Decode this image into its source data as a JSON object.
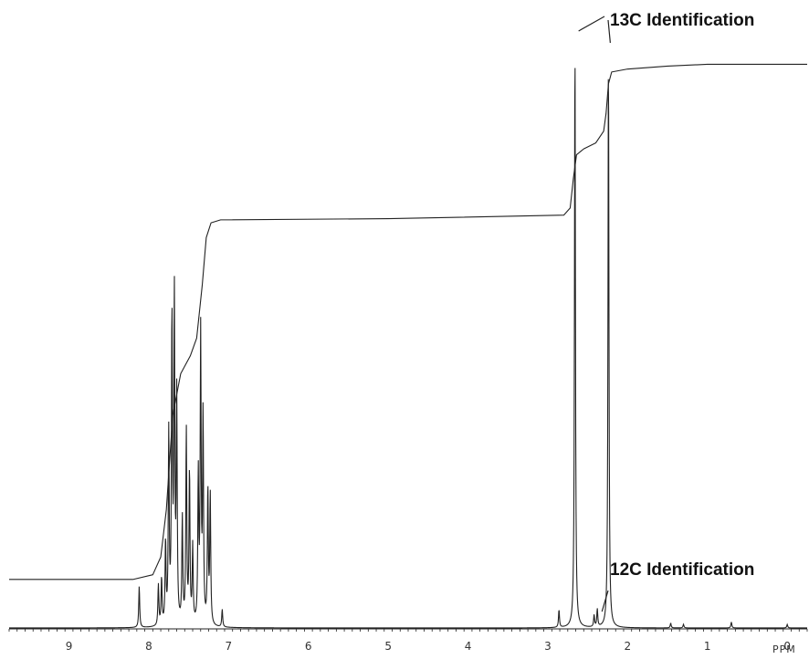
{
  "chart_data": {
    "type": "line",
    "title": "",
    "xlabel": "PPM",
    "ylabel": "",
    "xlim": [
      9.75,
      -0.25
    ],
    "x_reversed": true,
    "major_ticks": [
      9,
      8,
      7,
      6,
      5,
      4,
      3,
      2,
      1,
      0
    ],
    "tick_labels": [
      "9",
      "8",
      "7",
      "6",
      "5",
      "4",
      "3",
      "2",
      "1",
      "0"
    ],
    "minor_tick_step": 0.1,
    "grid": false,
    "legend": "none",
    "color": "#222222",
    "series": [
      {
        "role": "spectrum",
        "baseline": 0,
        "peaks": [
          {
            "ppm": 8.12,
            "height": 0.07
          },
          {
            "ppm": 7.88,
            "height": 0.07
          },
          {
            "ppm": 7.84,
            "height": 0.08
          },
          {
            "ppm": 7.79,
            "height": 0.14
          },
          {
            "ppm": 7.75,
            "height": 0.32
          },
          {
            "ppm": 7.71,
            "height": 0.52
          },
          {
            "ppm": 7.68,
            "height": 0.55
          },
          {
            "ppm": 7.65,
            "height": 0.38
          },
          {
            "ppm": 7.58,
            "height": 0.18
          },
          {
            "ppm": 7.53,
            "height": 0.33
          },
          {
            "ppm": 7.49,
            "height": 0.26
          },
          {
            "ppm": 7.45,
            "height": 0.13
          },
          {
            "ppm": 7.38,
            "height": 0.25
          },
          {
            "ppm": 7.35,
            "height": 0.49
          },
          {
            "ppm": 7.32,
            "height": 0.35
          },
          {
            "ppm": 7.26,
            "height": 0.23
          },
          {
            "ppm": 7.23,
            "height": 0.22
          },
          {
            "ppm": 7.08,
            "height": 0.03
          },
          {
            "ppm": 2.86,
            "height": 0.03
          },
          {
            "ppm": 2.66,
            "height": 1.0
          },
          {
            "ppm": 2.42,
            "height": 0.02
          },
          {
            "ppm": 2.38,
            "height": 0.03
          },
          {
            "ppm": 2.24,
            "height": 0.98
          },
          {
            "ppm": 1.46,
            "height": 0.008
          },
          {
            "ppm": 1.3,
            "height": 0.006
          },
          {
            "ppm": 0.7,
            "height": 0.01
          },
          {
            "ppm": 0.0,
            "height": 0.006
          }
        ]
      },
      {
        "role": "integral",
        "points": [
          [
            9.75,
            0.082
          ],
          [
            8.2,
            0.082
          ],
          [
            7.95,
            0.09
          ],
          [
            7.85,
            0.12
          ],
          [
            7.78,
            0.2
          ],
          [
            7.7,
            0.36
          ],
          [
            7.6,
            0.43
          ],
          [
            7.48,
            0.46
          ],
          [
            7.4,
            0.49
          ],
          [
            7.33,
            0.58
          ],
          [
            7.28,
            0.66
          ],
          [
            7.22,
            0.685
          ],
          [
            7.1,
            0.69
          ],
          [
            5.0,
            0.692
          ],
          [
            2.8,
            0.698
          ],
          [
            2.72,
            0.71
          ],
          [
            2.68,
            0.76
          ],
          [
            2.64,
            0.8
          ],
          [
            2.55,
            0.81
          ],
          [
            2.4,
            0.82
          ],
          [
            2.3,
            0.84
          ],
          [
            2.27,
            0.87
          ],
          [
            2.24,
            0.92
          ],
          [
            2.2,
            0.94
          ],
          [
            2.0,
            0.945
          ],
          [
            1.5,
            0.95
          ],
          [
            1.0,
            0.953
          ],
          [
            -0.25,
            0.953
          ]
        ]
      }
    ],
    "annotations": [
      {
        "text": "13C Identification",
        "lines": [
          {
            "from_ppm": 2.66,
            "from_height": 1.0
          },
          {
            "from_ppm": 2.24,
            "from_height": 0.98
          }
        ]
      },
      {
        "text": "12C Identification",
        "lines": [
          {
            "from_ppm": 2.39,
            "from_height": 0.06
          }
        ]
      }
    ]
  }
}
